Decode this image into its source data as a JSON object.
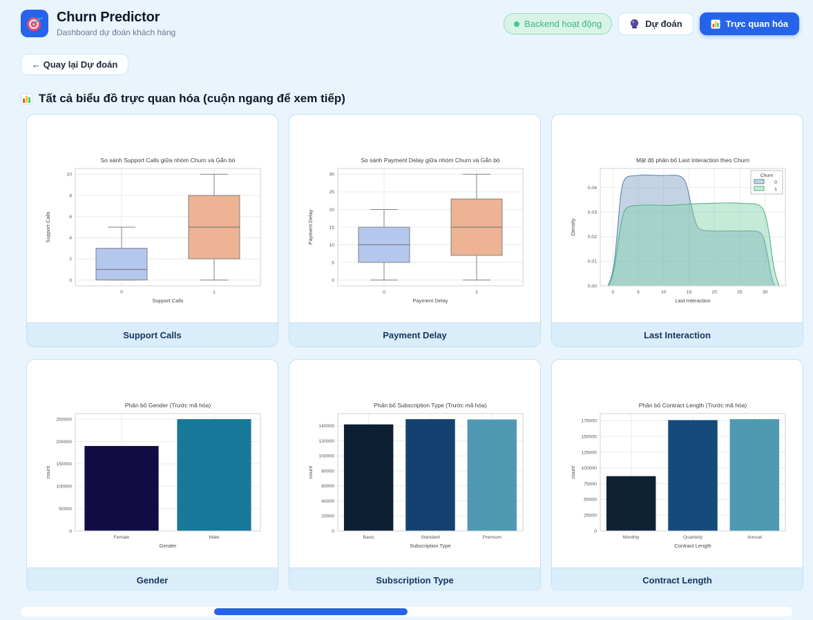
{
  "header": {
    "title": "Churn Predictor",
    "subtitle": "Dashboard dự đoán khách hàng",
    "status_label": "Backend hoạt động",
    "predict_button": "Dự đoán",
    "visualize_button": "Trực quan hóa"
  },
  "back_button_label": "← Quay lại Dự đoán",
  "section_title": "Tất cả biểu đồ trực quan hóa (cuộn ngang để xem tiếp)",
  "cards": [
    {
      "label": "Support Calls"
    },
    {
      "label": "Payment Delay"
    },
    {
      "label": "Last Interaction"
    },
    {
      "label": "Gender"
    },
    {
      "label": "Subscription Type"
    },
    {
      "label": "Contract Length"
    }
  ],
  "colors": {
    "accent_blue": "#2563eb",
    "page_bg": "#eaf4fc",
    "card_border": "#bfe2f5",
    "card_footer_bg": "#d9edfb",
    "status_green": "#36b87e",
    "box_blue": "#b4c7ed",
    "box_salmon": "#ecb394"
  },
  "chart_data": [
    {
      "type": "box",
      "title": "So sánh Support Calls giữa nhóm Churn và Gắn bó",
      "xlabel": "Support Calls",
      "ylabel": "Support Calls",
      "categories": [
        "0",
        "1"
      ],
      "boxes": [
        {
          "whisker_low": 0,
          "q1": 0,
          "median": 1,
          "q3": 3,
          "whisker_high": 5,
          "color": "#b4c7ed"
        },
        {
          "whisker_low": 0,
          "q1": 2,
          "median": 5,
          "q3": 8,
          "whisker_high": 10,
          "color": "#ecb394"
        }
      ],
      "yticks": [
        0,
        2,
        4,
        6,
        8,
        10
      ],
      "ylim": [
        -0.55,
        10.55
      ]
    },
    {
      "type": "box",
      "title": "So sánh Payment Delay giữa nhóm Churn và Gắn bó",
      "xlabel": "Payment Delay",
      "ylabel": "Payment Delay",
      "categories": [
        "0",
        "1"
      ],
      "boxes": [
        {
          "whisker_low": 0,
          "q1": 5,
          "median": 10,
          "q3": 15,
          "whisker_high": 20,
          "color": "#b4c7ed"
        },
        {
          "whisker_low": 0,
          "q1": 7,
          "median": 15,
          "q3": 23,
          "whisker_high": 30,
          "color": "#ecb394"
        }
      ],
      "yticks": [
        0,
        5,
        10,
        15,
        20,
        25,
        30
      ],
      "ylim": [
        -1.65,
        31.65
      ]
    },
    {
      "type": "kde",
      "title": "Mật độ phân bố Last Interaction theo Churn",
      "xlabel": "Last Interaction",
      "ylabel": "Density",
      "legend_title": "Churn",
      "xticks": [
        0,
        5,
        10,
        15,
        20,
        25,
        30
      ],
      "yticks": [
        0,
        0.01,
        0.02,
        0.03,
        0.04
      ],
      "xlim": [
        -2.5,
        34
      ],
      "ylim": [
        0,
        0.0478
      ],
      "series": [
        {
          "name": "0",
          "stroke": "#5d87ad",
          "fill": "rgba(125,158,196,0.45)",
          "points": [
            [
              -1,
              0
            ],
            [
              0,
              0.004
            ],
            [
              0.8,
              0.02
            ],
            [
              1.6,
              0.04
            ],
            [
              2.5,
              0.0445
            ],
            [
              4,
              0.0448
            ],
            [
              6,
              0.0452
            ],
            [
              8,
              0.045
            ],
            [
              10,
              0.0449
            ],
            [
              12,
              0.0451
            ],
            [
              13.5,
              0.0447
            ],
            [
              14.5,
              0.042
            ],
            [
              15.5,
              0.032
            ],
            [
              16.5,
              0.024
            ],
            [
              17.5,
              0.0226
            ],
            [
              19,
              0.0224
            ],
            [
              21,
              0.0223
            ],
            [
              23,
              0.0224
            ],
            [
              25,
              0.0223
            ],
            [
              27,
              0.0224
            ],
            [
              28.5,
              0.0223
            ],
            [
              29.5,
              0.021
            ],
            [
              30.3,
              0.015
            ],
            [
              31,
              0.006
            ],
            [
              31.6,
              0.001
            ],
            [
              32,
              0
            ]
          ]
        },
        {
          "name": "1",
          "stroke": "#55b289",
          "fill": "rgba(128,209,168,0.45)",
          "points": [
            [
              -0.8,
              0
            ],
            [
              0.2,
              0.005
            ],
            [
              1,
              0.018
            ],
            [
              2,
              0.03
            ],
            [
              3,
              0.0325
            ],
            [
              5,
              0.0328
            ],
            [
              7,
              0.033
            ],
            [
              9,
              0.0328
            ],
            [
              11,
              0.0327
            ],
            [
              13,
              0.033
            ],
            [
              15,
              0.0333
            ],
            [
              17,
              0.0335
            ],
            [
              19,
              0.0336
            ],
            [
              21,
              0.0337
            ],
            [
              23,
              0.0338
            ],
            [
              25,
              0.0336
            ],
            [
              27,
              0.0335
            ],
            [
              28.5,
              0.0333
            ],
            [
              29.8,
              0.0315
            ],
            [
              30.8,
              0.022
            ],
            [
              31.5,
              0.01
            ],
            [
              32.2,
              0.003
            ],
            [
              32.8,
              0
            ]
          ]
        }
      ]
    },
    {
      "type": "bar",
      "title": "Phân bố Gender (Trước mã hóa)",
      "xlabel": "Gender",
      "ylabel": "count",
      "categories": [
        "Female",
        "Male"
      ],
      "values": [
        190000,
        250000
      ],
      "colors": [
        "#110d44",
        "#17789a"
      ],
      "yticks": [
        0,
        50000,
        100000,
        150000,
        200000,
        250000
      ],
      "ylim": [
        0,
        262500
      ]
    },
    {
      "type": "bar",
      "title": "Phân bố Subscription Type (Trước mã hóa)",
      "xlabel": "Subscription Type",
      "ylabel": "count",
      "categories": [
        "Basic",
        "Standard",
        "Premium"
      ],
      "values": [
        142000,
        149000,
        148600
      ],
      "colors": [
        "#0c1f33",
        "#14416f",
        "#4f9ab2"
      ],
      "yticks": [
        0,
        20000,
        40000,
        60000,
        80000,
        100000,
        120000,
        140000
      ],
      "ylim": [
        0,
        156450
      ]
    },
    {
      "type": "bar",
      "title": "Phân bố Contract Length (Trước mã hóa)",
      "xlabel": "Contract Length",
      "ylabel": "count",
      "categories": [
        "Monthly",
        "Quarterly",
        "Annual"
      ],
      "values": [
        87000,
        176000,
        177500
      ],
      "colors": [
        "#0e2234",
        "#164a7c",
        "#4f9ab2"
      ],
      "yticks": [
        0,
        25000,
        50000,
        75000,
        100000,
        125000,
        150000,
        175000
      ],
      "ylim": [
        0,
        186375
      ]
    }
  ]
}
